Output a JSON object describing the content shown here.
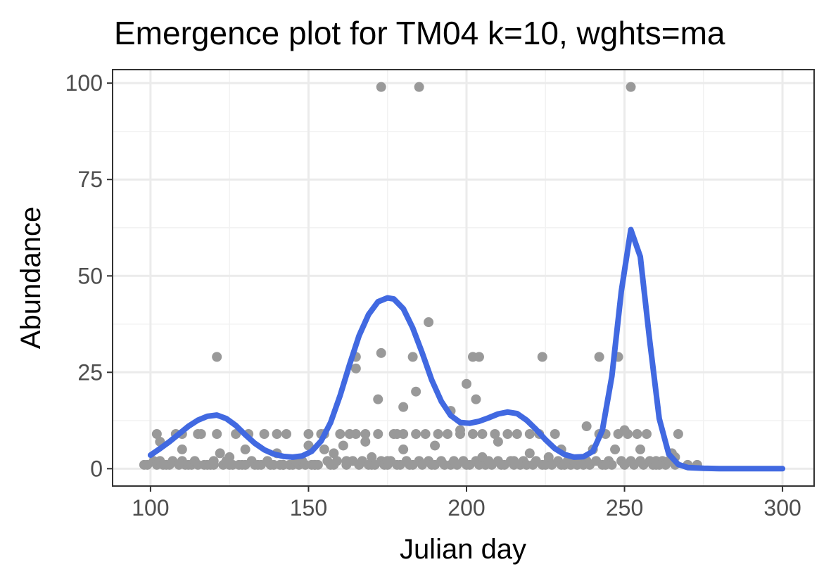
{
  "chart_data": {
    "type": "scatter",
    "title": "Emergence plot for TM04 k=10, wghts=ma",
    "xlabel": "Julian day",
    "ylabel": "Abundance",
    "xlim": [
      88,
      310
    ],
    "ylim": [
      -4.5,
      103.5
    ],
    "x_ticks": [
      100,
      150,
      200,
      250,
      300
    ],
    "y_ticks": [
      0,
      25,
      50,
      75,
      100
    ],
    "x_tick_labels": [
      "100",
      "150",
      "200",
      "250",
      "300"
    ],
    "y_tick_labels": [
      "0",
      "25",
      "50",
      "75",
      "100"
    ],
    "grid": true,
    "legend": "none",
    "colors": {
      "points": "#999999",
      "curve": "#4169e1",
      "panel_border": "#333333",
      "grid_major": "#ebebeb",
      "grid_minor": "#f2f2f2"
    },
    "series": [
      {
        "kind": "points",
        "x": [
          98,
          99,
          101,
          102,
          102,
          103,
          103,
          104,
          105,
          106,
          107,
          108,
          109,
          110,
          110,
          111,
          112,
          113,
          114,
          115,
          116,
          117,
          118,
          119,
          120,
          120,
          121,
          122,
          123,
          124,
          125,
          126,
          127,
          128,
          129,
          130,
          131,
          132,
          133,
          134,
          135,
          136,
          137,
          138,
          139,
          140,
          141,
          142,
          143,
          144,
          145,
          146,
          147,
          148,
          149,
          150,
          151,
          152,
          153,
          154,
          155,
          156,
          157,
          158,
          159,
          160,
          161,
          162,
          163,
          164,
          165,
          165,
          166,
          167,
          168,
          169,
          170,
          171,
          172,
          173,
          174,
          175,
          176,
          177,
          178,
          179,
          180,
          181,
          182,
          183,
          184,
          185,
          186,
          187,
          188,
          189,
          190,
          191,
          192,
          193,
          194,
          195,
          196,
          197,
          198,
          199,
          200,
          201,
          202,
          203,
          204,
          205,
          206,
          207,
          208,
          209,
          210,
          211,
          212,
          213,
          214,
          215,
          216,
          217,
          218,
          219,
          220,
          221,
          222,
          223,
          224,
          225,
          226,
          227,
          228,
          229,
          230,
          231,
          232,
          233,
          234,
          235,
          236,
          237,
          238,
          239,
          240,
          241,
          242,
          243,
          244,
          245,
          246,
          247,
          248,
          249,
          250,
          251,
          252,
          253,
          254,
          255,
          256,
          257,
          258,
          259,
          260,
          261,
          262,
          263,
          264,
          265,
          266,
          267,
          270,
          273,
          121,
          173,
          185,
          252,
          165,
          173,
          183,
          202,
          204,
          224,
          242,
          248,
          188,
          200,
          180,
          203,
          172,
          184,
          178,
          110,
          115,
          125,
          130,
          140,
          142,
          150,
          152,
          155,
          158,
          162,
          168,
          170,
          175,
          180,
          190,
          195,
          198,
          205,
          210,
          215,
          220,
          226,
          230,
          238,
          244,
          250,
          255,
          260,
          266
        ],
        "y": [
          1,
          1,
          2,
          9,
          1,
          7,
          2,
          1,
          1,
          1,
          2,
          9,
          1,
          2,
          9,
          1,
          1,
          1,
          2,
          1,
          9,
          1,
          1,
          1,
          2,
          1,
          9,
          4,
          1,
          2,
          1,
          1,
          9,
          1,
          1,
          5,
          9,
          2,
          1,
          1,
          1,
          9,
          2,
          1,
          1,
          9,
          1,
          1,
          9,
          1,
          1,
          2,
          1,
          2,
          1,
          9,
          1,
          1,
          1,
          9,
          5,
          2,
          1,
          1,
          2,
          9,
          6,
          1,
          9,
          2,
          9,
          29,
          1,
          2,
          9,
          1,
          1,
          1,
          9,
          2,
          1,
          1,
          2,
          9,
          1,
          1,
          9,
          2,
          1,
          1,
          9,
          2,
          1,
          9,
          2,
          1,
          1,
          9,
          2,
          1,
          9,
          1,
          2,
          1,
          9,
          2,
          1,
          1,
          9,
          2,
          1,
          9,
          1,
          2,
          1,
          9,
          2,
          1,
          1,
          9,
          2,
          1,
          9,
          1,
          2,
          1,
          9,
          1,
          2,
          9,
          1,
          1,
          2,
          1,
          9,
          2,
          1,
          1,
          2,
          1,
          2,
          1,
          2,
          1,
          2,
          1,
          5,
          2,
          9,
          1,
          9,
          2,
          1,
          5,
          9,
          2,
          1,
          9,
          2,
          1,
          9,
          2,
          1,
          9,
          2,
          1,
          2,
          1,
          2,
          1,
          2,
          4,
          1,
          9,
          1,
          1,
          29,
          99,
          99,
          99,
          26,
          30,
          29,
          29,
          29,
          29,
          29,
          29,
          38,
          22,
          16,
          18,
          18,
          20,
          9,
          5,
          9,
          3,
          1,
          4,
          1,
          6,
          1,
          9,
          4,
          2,
          7,
          3,
          2,
          5,
          6,
          15,
          10,
          3,
          7,
          2,
          4,
          3,
          5,
          11,
          1,
          10,
          5,
          1,
          3
        ]
      },
      {
        "kind": "line",
        "x": [
          100,
          103,
          106,
          109,
          112,
          115,
          118,
          121,
          124,
          127,
          130,
          133,
          136,
          139,
          142,
          145,
          148,
          151,
          154,
          157,
          160,
          163,
          166,
          169,
          172,
          175,
          177,
          180,
          183,
          186,
          189,
          192,
          195,
          198,
          201,
          204,
          207,
          210,
          213,
          216,
          219,
          222,
          225,
          228,
          231,
          234,
          237,
          240,
          243,
          246,
          249,
          252,
          255,
          258,
          261,
          264,
          267,
          270,
          275,
          280,
          290,
          300
        ],
        "y": [
          3.5,
          5.2,
          7.0,
          9.0,
          11.0,
          12.6,
          13.6,
          13.9,
          13.0,
          11.2,
          8.8,
          6.6,
          4.9,
          3.8,
          3.2,
          3.0,
          3.3,
          4.5,
          7.2,
          12.0,
          19.0,
          27.0,
          34.5,
          40.0,
          43.3,
          44.3,
          44.0,
          41.5,
          36.5,
          30.0,
          23.0,
          17.5,
          13.8,
          12.0,
          11.8,
          12.3,
          13.2,
          14.2,
          14.7,
          14.3,
          12.6,
          10.2,
          7.5,
          5.2,
          3.7,
          3.0,
          3.1,
          4.5,
          10.0,
          24.0,
          46.0,
          62.0,
          55.0,
          33.0,
          13.0,
          3.8,
          1.1,
          0.3,
          0.1,
          0.0,
          0.0,
          0.0
        ]
      }
    ]
  }
}
